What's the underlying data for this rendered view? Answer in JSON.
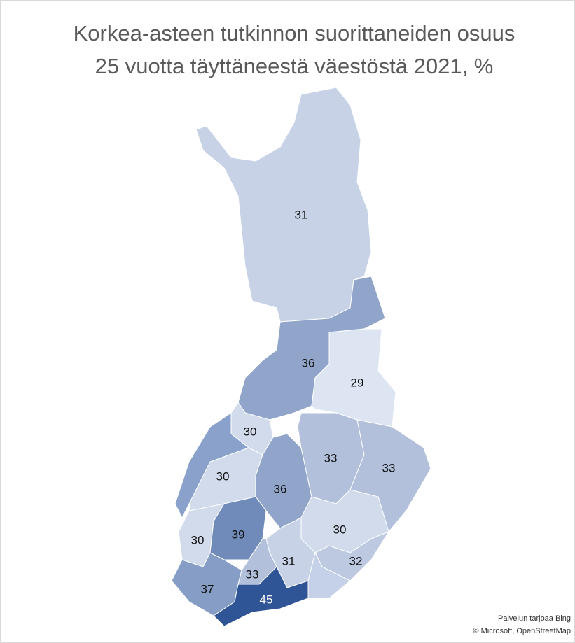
{
  "chart_data": {
    "type": "choropleth",
    "title": [
      "Korkea-asteen tutkinnon suorittaneiden osuus",
      "25 vuotta täyttäneestä väestöstä 2021, %"
    ],
    "values": [
      31,
      36,
      29,
      30,
      30,
      36,
      33,
      33,
      30,
      30,
      39,
      31,
      33,
      37,
      45,
      32
    ],
    "color_low": "#dde4f2",
    "color_high": "#2f5597",
    "attribution": [
      "Palvelun tarjoaa Bing",
      "© Microsoft, OpenStreetMap"
    ]
  }
}
